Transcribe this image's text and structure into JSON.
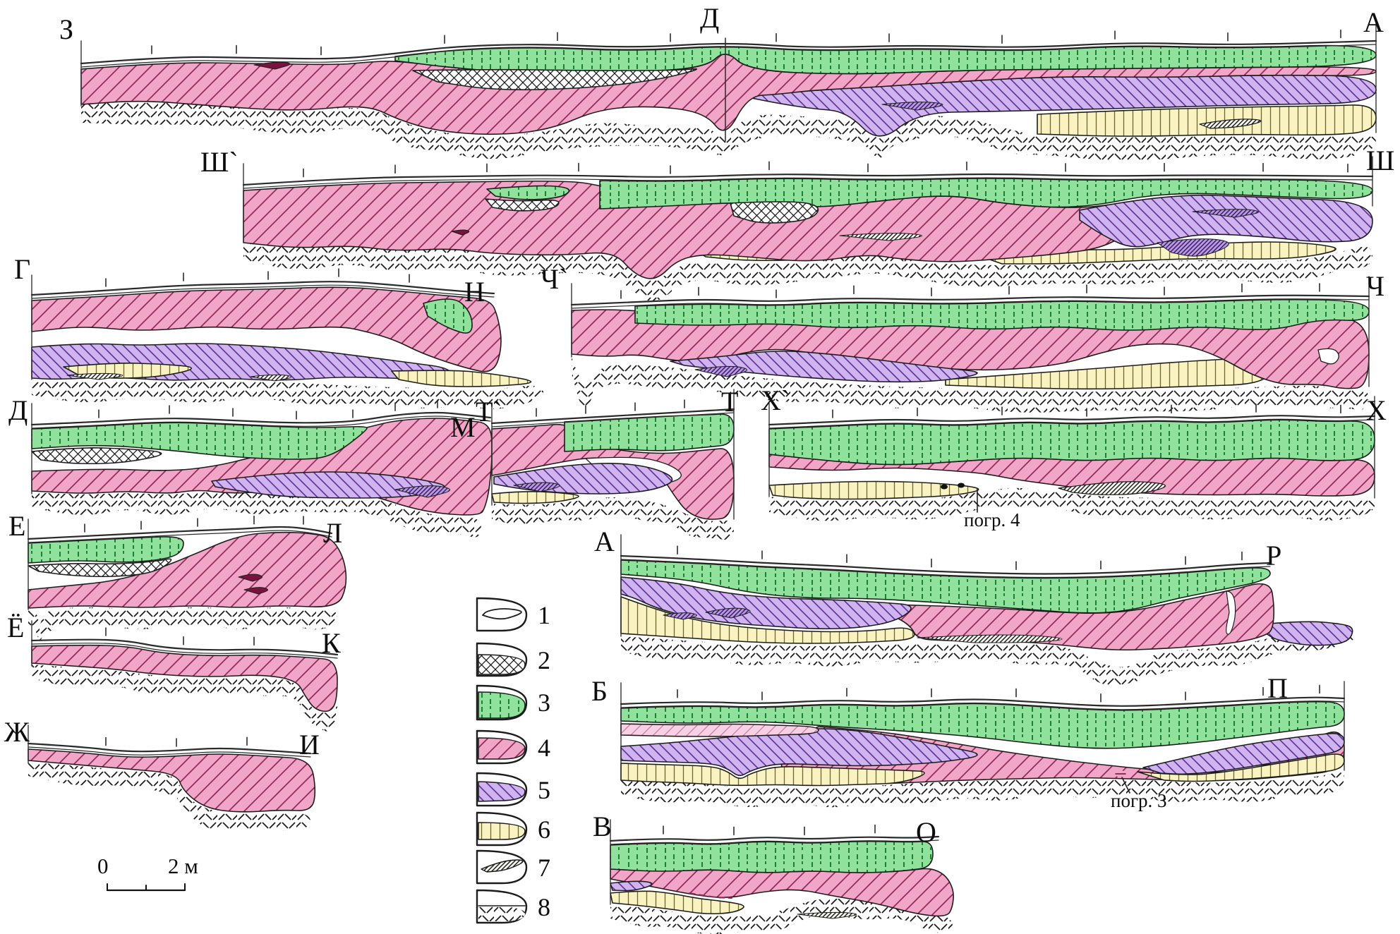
{
  "figure": {
    "type": "geological-cross-sections",
    "colors": {
      "green": "#8FE19B",
      "pink": "#F2A6C7",
      "light_pink": "#F8D0E3",
      "purple": "#CFB4F0",
      "yellow": "#F8F3C1",
      "outline": "#1C1C1C"
    }
  },
  "sections": {
    "s1": {
      "left": "З",
      "top": "Д",
      "right": "А"
    },
    "s2": {
      "left": "Ш`",
      "right": "Ш"
    },
    "s3": {
      "left": "Г",
      "right": "Н"
    },
    "s4": {
      "left": "Ч`",
      "right": "Ч"
    },
    "s5": {
      "left": "Д",
      "right": "М"
    },
    "s6": {
      "left": "Т`",
      "right": "Т"
    },
    "s7": {
      "left": "Х`",
      "right": "Х"
    },
    "s8": {
      "left": "Е",
      "right": "Л"
    },
    "s9": {
      "left": "Ё",
      "right": "К"
    },
    "s10": {
      "left": "Ж",
      "right": "И"
    },
    "s11": {
      "left": "А",
      "right": "Р"
    },
    "s12": {
      "left": "Б",
      "right": "П"
    },
    "s13": {
      "left": "В",
      "right": "О"
    }
  },
  "legend": {
    "items": [
      "1",
      "2",
      "3",
      "4",
      "5",
      "6",
      "7",
      "8"
    ],
    "symbols": [
      "lens-outline",
      "cross-hatch",
      "green-dashed-layer",
      "pink-diagonal-layer",
      "purple-diagonal-layer",
      "yellow-vertical-layer",
      "dark-lens",
      "bedrock-hatch"
    ]
  },
  "annotations": {
    "pogr4": "погр. 4",
    "pogr3": "погр. 3"
  },
  "scale_bar": {
    "start": "0",
    "end": "2 м"
  }
}
